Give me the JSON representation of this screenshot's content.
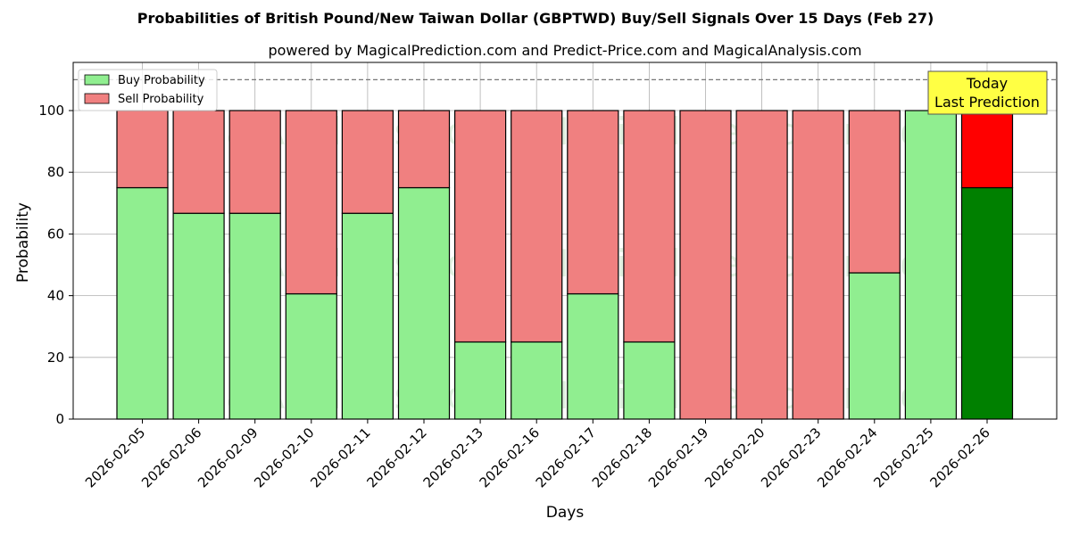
{
  "chart_data": {
    "type": "bar",
    "stacked": true,
    "title": "Probabilities of British Pound/New Taiwan Dollar (GBPTWD) Buy/Sell Signals Over 15 Days (Feb 27)",
    "subtitle": "powered by MagicalPrediction.com and Predict-Price.com and MagicalAnalysis.com",
    "xlabel": "Days",
    "ylabel": "Probability",
    "ylim": [
      0,
      115
    ],
    "yticks": [
      0,
      20,
      40,
      60,
      80,
      100
    ],
    "grid": true,
    "legend_position": "top-left",
    "reference_line": 110,
    "categories": [
      "2026-02-05",
      "2026-02-06",
      "2026-02-09",
      "2026-02-10",
      "2026-02-11",
      "2026-02-12",
      "2026-02-13",
      "2026-02-16",
      "2026-02-17",
      "2026-02-18",
      "2026-02-19",
      "2026-02-20",
      "2026-02-23",
      "2026-02-24",
      "2026-02-25",
      "2026-02-26"
    ],
    "series": [
      {
        "name": "Buy Probability",
        "color": "#90ee90",
        "highlight_color": "#008000",
        "values": [
          75,
          66.7,
          66.7,
          40.6,
          66.7,
          75,
          25,
          25,
          40.6,
          25,
          0,
          0,
          0,
          47.4,
          100,
          75
        ]
      },
      {
        "name": "Sell Probability",
        "color": "#f08080",
        "highlight_color": "#ff0000",
        "values": [
          25,
          33.3,
          33.3,
          59.4,
          33.3,
          25,
          75,
          75,
          59.4,
          75,
          100,
          100,
          100,
          52.6,
          0,
          25
        ]
      }
    ],
    "highlight_index": 15,
    "annotation": {
      "line1": "Today",
      "line2": "Last Prediction",
      "color": "#ffff44"
    },
    "watermarks": [
      "MagicalAnalysis.com",
      "MagicalPrediction.com"
    ]
  }
}
